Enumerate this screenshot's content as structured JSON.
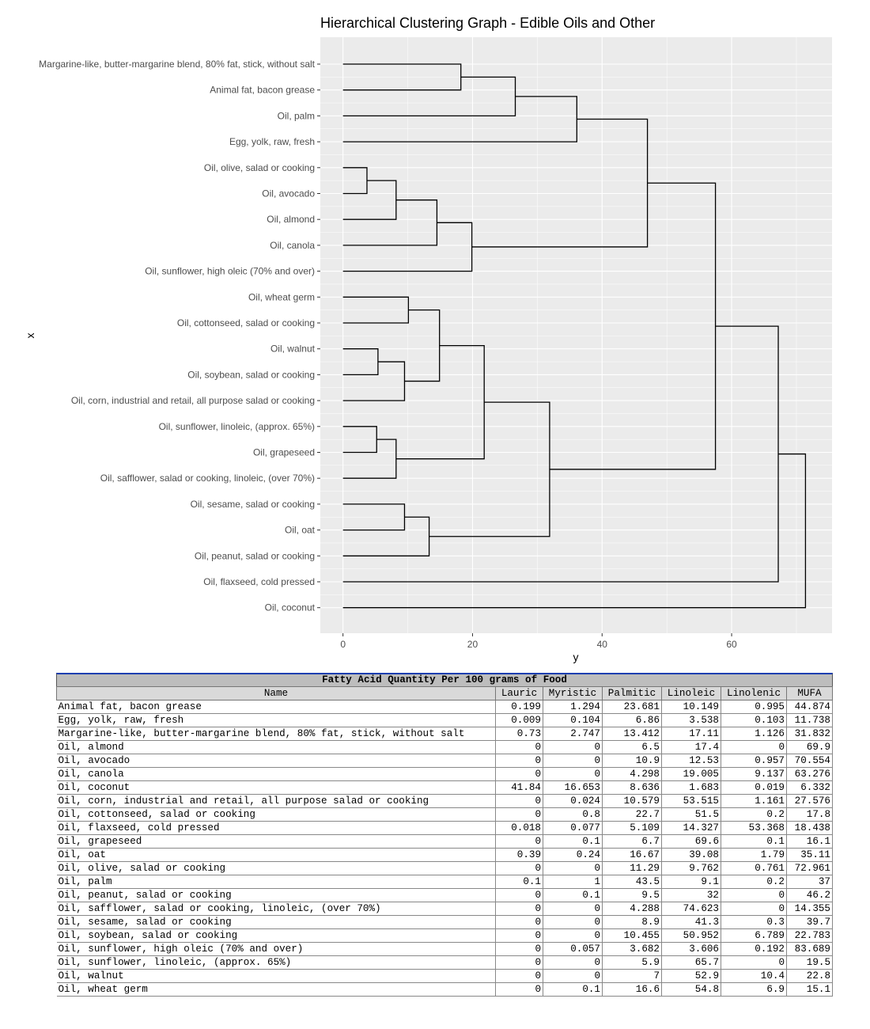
{
  "chart_data": {
    "type": "dendrogram",
    "title": "Hierarchical Clustering Graph - Edible Oils and Other",
    "xlabel": "x",
    "ylabel": "y",
    "y_ticks": [
      0,
      20,
      40,
      60
    ],
    "y_range": [
      -3.5,
      75.5
    ],
    "grid": true,
    "leaves": [
      "Margarine-like, butter-margarine blend, 80% fat, stick, without salt",
      "Animal fat, bacon grease",
      "Oil, palm",
      "Egg, yolk, raw, fresh",
      "Oil, olive, salad or cooking",
      "Oil, avocado",
      "Oil, almond",
      "Oil, canola",
      "Oil, sunflower, high oleic (70% and over)",
      "Oil, wheat germ",
      "Oil, cottonseed, salad or cooking",
      "Oil, walnut",
      "Oil, soybean, salad or cooking",
      "Oil, corn, industrial and retail, all purpose salad or cooking",
      "Oil, sunflower, linoleic, (approx. 65%)",
      "Oil, grapeseed",
      "Oil, safflower, salad or cooking, linoleic, (over 70%)",
      "Oil, sesame, salad or cooking",
      "Oil, oat",
      "Oil, peanut, salad or cooking",
      "Oil, flaxseed, cold pressed",
      "Oil, coconut"
    ],
    "merges": [
      {
        "left": 0,
        "right": 1,
        "height": 18.2
      },
      {
        "left": 22,
        "right": 2,
        "height": 26.6
      },
      {
        "left": 23,
        "right": 3,
        "height": 36.1
      },
      {
        "left": 4,
        "right": 5,
        "height": 3.7
      },
      {
        "left": 25,
        "right": 6,
        "height": 8.2
      },
      {
        "left": 26,
        "right": 7,
        "height": 14.5
      },
      {
        "left": 27,
        "right": 8,
        "height": 19.9
      },
      {
        "left": 24,
        "right": 28,
        "height": 47.0
      },
      {
        "left": 9,
        "right": 10,
        "height": 10.1
      },
      {
        "left": 11,
        "right": 12,
        "height": 5.4
      },
      {
        "left": 31,
        "right": 13,
        "height": 9.5
      },
      {
        "left": 30,
        "right": 32,
        "height": 14.9
      },
      {
        "left": 14,
        "right": 15,
        "height": 5.2
      },
      {
        "left": 34,
        "right": 16,
        "height": 8.2
      },
      {
        "left": 33,
        "right": 35,
        "height": 21.8
      },
      {
        "left": 17,
        "right": 18,
        "height": 9.5
      },
      {
        "left": 37,
        "right": 19,
        "height": 13.3
      },
      {
        "left": 36,
        "right": 38,
        "height": 31.9
      },
      {
        "left": 29,
        "right": 39,
        "height": 57.5
      },
      {
        "left": 40,
        "right": 20,
        "height": 67.2
      },
      {
        "left": 41,
        "right": 21,
        "height": 71.4
      }
    ]
  },
  "table": {
    "caption": "Fatty Acid Quantity Per 100 grams of Food",
    "columns": [
      "Name",
      "Lauric",
      "Myristic",
      "Palmitic",
      "Linoleic",
      "Linolenic",
      "MUFA"
    ],
    "rows": [
      [
        "Animal fat, bacon grease",
        "0.199",
        "1.294",
        "23.681",
        "10.149",
        "0.995",
        "44.874"
      ],
      [
        "Egg, yolk, raw, fresh",
        "0.009",
        "0.104",
        "6.86",
        "3.538",
        "0.103",
        "11.738"
      ],
      [
        "Margarine-like, butter-margarine blend, 80% fat, stick, without salt",
        "0.73",
        "2.747",
        "13.412",
        "17.11",
        "1.126",
        "31.832"
      ],
      [
        "Oil, almond",
        "0",
        "0",
        "6.5",
        "17.4",
        "0",
        "69.9"
      ],
      [
        "Oil, avocado",
        "0",
        "0",
        "10.9",
        "12.53",
        "0.957",
        "70.554"
      ],
      [
        "Oil, canola",
        "0",
        "0",
        "4.298",
        "19.005",
        "9.137",
        "63.276"
      ],
      [
        "Oil, coconut",
        "41.84",
        "16.653",
        "8.636",
        "1.683",
        "0.019",
        "6.332"
      ],
      [
        "Oil, corn, industrial and retail, all purpose salad or cooking",
        "0",
        "0.024",
        "10.579",
        "53.515",
        "1.161",
        "27.576"
      ],
      [
        "Oil, cottonseed, salad or cooking",
        "0",
        "0.8",
        "22.7",
        "51.5",
        "0.2",
        "17.8"
      ],
      [
        "Oil, flaxseed, cold pressed",
        "0.018",
        "0.077",
        "5.109",
        "14.327",
        "53.368",
        "18.438"
      ],
      [
        "Oil, grapeseed",
        "0",
        "0.1",
        "6.7",
        "69.6",
        "0.1",
        "16.1"
      ],
      [
        "Oil, oat",
        "0.39",
        "0.24",
        "16.67",
        "39.08",
        "1.79",
        "35.11"
      ],
      [
        "Oil, olive, salad or cooking",
        "0",
        "0",
        "11.29",
        "9.762",
        "0.761",
        "72.961"
      ],
      [
        "Oil, palm",
        "0.1",
        "1",
        "43.5",
        "9.1",
        "0.2",
        "37"
      ],
      [
        "Oil, peanut, salad or cooking",
        "0",
        "0.1",
        "9.5",
        "32",
        "0",
        "46.2"
      ],
      [
        "Oil, safflower, salad or cooking, linoleic, (over 70%)",
        "0",
        "0",
        "4.288",
        "74.623",
        "0",
        "14.355"
      ],
      [
        "Oil, sesame, salad or cooking",
        "0",
        "0",
        "8.9",
        "41.3",
        "0.3",
        "39.7"
      ],
      [
        "Oil, soybean, salad or cooking",
        "0",
        "0",
        "10.455",
        "50.952",
        "6.789",
        "22.783"
      ],
      [
        "Oil, sunflower, high oleic (70% and over)",
        "0",
        "0.057",
        "3.682",
        "3.606",
        "0.192",
        "83.689"
      ],
      [
        "Oil, sunflower, linoleic, (approx. 65%)",
        "0",
        "0",
        "5.9",
        "65.7",
        "0",
        "19.5"
      ],
      [
        "Oil, walnut",
        "0",
        "0",
        "7",
        "52.9",
        "10.4",
        "22.8"
      ],
      [
        "Oil, wheat germ",
        "0",
        "0.1",
        "16.6",
        "54.8",
        "6.9",
        "15.1"
      ]
    ]
  }
}
